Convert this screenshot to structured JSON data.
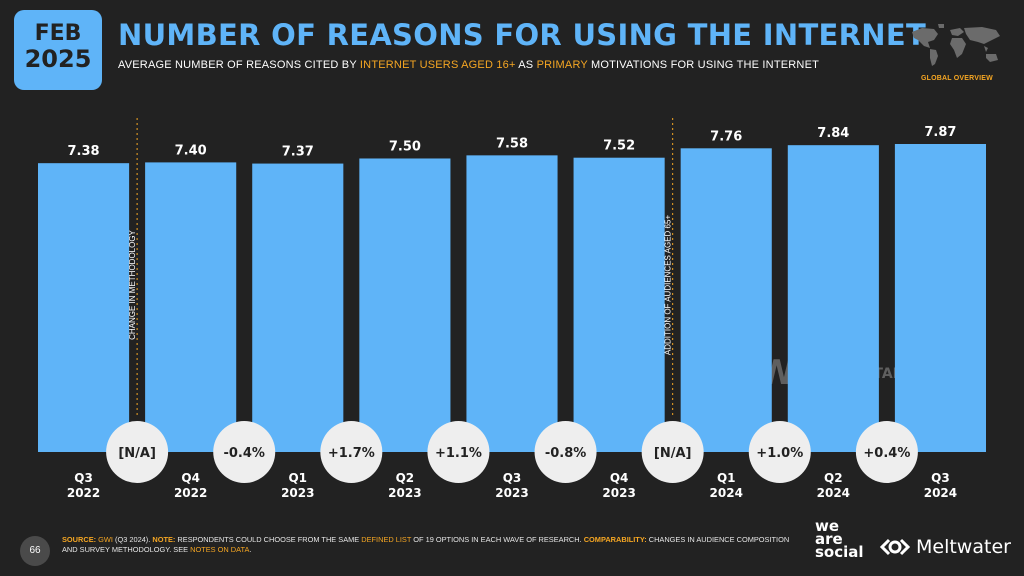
{
  "header": {
    "date_month": "FEB",
    "date_year": "2025",
    "title": "NUMBER OF REASONS FOR USING THE INTERNET",
    "subtitle_part1": "AVERAGE NUMBER OF REASONS CITED BY ",
    "subtitle_hl1": "INTERNET USERS AGED 16+",
    "subtitle_part2": " AS ",
    "subtitle_hl2": "PRIMARY",
    "subtitle_part3": " MOTIVATIONS FOR USING THE INTERNET",
    "map_label": "GLOBAL OVERVIEW"
  },
  "chart_data": {
    "type": "bar",
    "categories": [
      "Q3 2022",
      "Q4 2022",
      "Q1 2023",
      "Q2 2023",
      "Q3 2023",
      "Q4 2023",
      "Q1 2024",
      "Q2 2024",
      "Q3 2024"
    ],
    "category_quarters": [
      "Q3",
      "Q4",
      "Q1",
      "Q2",
      "Q3",
      "Q4",
      "Q1",
      "Q2",
      "Q3"
    ],
    "category_years": [
      "2022",
      "2022",
      "2023",
      "2023",
      "2023",
      "2023",
      "2024",
      "2024",
      "2024"
    ],
    "values": [
      7.38,
      7.4,
      7.37,
      7.5,
      7.58,
      7.52,
      7.76,
      7.84,
      7.87
    ],
    "value_labels": [
      "7.38",
      "7.40",
      "7.37",
      "7.50",
      "7.58",
      "7.52",
      "7.76",
      "7.84",
      "7.87"
    ],
    "changes": [
      "[N/A]",
      "-0.4%",
      "+1.7%",
      "+1.1%",
      "-0.8%",
      "[N/A]",
      "+1.0%",
      "+0.4%"
    ],
    "annotations": [
      {
        "after_index": 0,
        "text": "CHANGE IN METHODOLOGY"
      },
      {
        "after_index": 5,
        "text": "ADDITION OF AUDIENCES AGED 65+"
      }
    ],
    "ylim": [
      0,
      7.87
    ],
    "bar_color": "#5fb4f8",
    "accent_color": "#f5a623",
    "watermarks": [
      "GWI.",
      "DATAREPORTAL"
    ]
  },
  "footer": {
    "page_number": "66",
    "source_label": "SOURCE:",
    "source_gwi": "GWI",
    "source_rest": " (Q3 2024). ",
    "note_label": "NOTE:",
    "note_text": " RESPONDENTS COULD CHOOSE FROM THE SAME ",
    "defined_list": "DEFINED LIST",
    "note_text2": " OF 19 OPTIONS IN EACH WAVE OF RESEARCH. ",
    "comp_label": "COMPARABILITY:",
    "comp_text": " CHANGES IN AUDIENCE COMPOSITION AND SURVEY METHODOLOGY. SEE ",
    "notes_on_data": "NOTES ON DATA",
    "end": ".",
    "brand_weare_1": "we",
    "brand_weare_2": "are",
    "brand_weare_3": "social",
    "brand_meltwater": "Meltwater"
  }
}
